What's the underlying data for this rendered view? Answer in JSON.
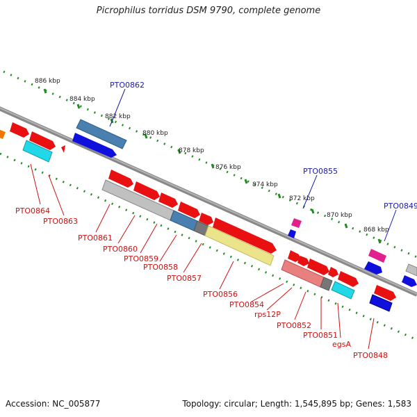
{
  "title": "Picrophilus torridus DSM 9790, complete genome",
  "footer": {
    "accession": "Accession: NC_005877",
    "stats": "Topology: circular; Length: 1,545,895 bp; Genes: 1,583"
  },
  "scale_labels": [
    "886 kbp",
    "884 kbp",
    "882 kbp",
    "880 kbp",
    "878 kbp",
    "876 kbp",
    "874 kbp",
    "872 kbp",
    "870 kbp",
    "868 kbp"
  ],
  "gene_labels_top": [
    "PTO0862",
    "PTO0855",
    "PTO0849"
  ],
  "gene_labels_bottom": [
    "PTO0864",
    "PTO0863",
    "PTO0861",
    "PTO0860",
    "PTO0859",
    "PTO0858",
    "PTO0857",
    "PTO0856",
    "PTO0854",
    "rps12P",
    "PTO0852",
    "PTO0851",
    "egsA",
    "PTO0848"
  ],
  "colors": {
    "gene_red": "#e81010",
    "gene_blue": "#1010dd",
    "gene_magenta": "#e0208c",
    "gene_orange": "#f07800",
    "band_cyan": "#20d8e8",
    "band_gray": "#c0c0c0",
    "band_steelblue": "#4a80b0",
    "band_darkgray": "#777777",
    "band_khaki": "#ece48a",
    "band_salmon": "#e88080",
    "backbone": "#8c8c8c",
    "scale_green": "#228b22",
    "label_blue": "#1a1aa8",
    "label_red": "#cc1111"
  }
}
